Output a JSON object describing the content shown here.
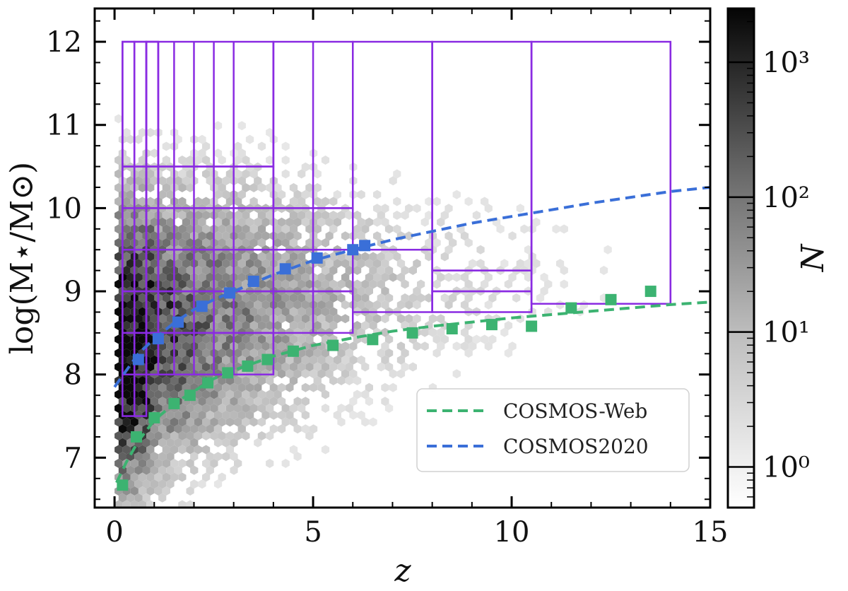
{
  "chart_data": {
    "type": "scatter",
    "subtype": "hexbin-density-with-bin-grid",
    "xlabel": "z",
    "ylabel": "log(M⋆/M⊙)",
    "xlim": [
      -0.5,
      15
    ],
    "ylim": [
      6.4,
      12.4
    ],
    "xticks": [
      0,
      5,
      10,
      15
    ],
    "yticks": [
      7,
      8,
      9,
      10,
      11,
      12
    ],
    "colorbar": {
      "label": "N",
      "scale": "log",
      "range": [
        0.5,
        2500
      ],
      "ticks": [
        {
          "value": 1,
          "label": "10⁰"
        },
        {
          "value": 10,
          "label": "10¹"
        },
        {
          "value": 100,
          "label": "10²"
        },
        {
          "value": 1000,
          "label": "10³"
        }
      ]
    },
    "bin_grid": {
      "color": "#8a2be2",
      "boxes": [
        [
          0.2,
          0.5,
          7.5,
          12
        ],
        [
          0.5,
          0.8,
          7.5,
          12
        ],
        [
          0.8,
          1.1,
          8.0,
          12
        ],
        [
          0.8,
          1.1,
          8.5,
          12
        ],
        [
          0.2,
          4.0,
          8.0,
          8.5
        ],
        [
          0.2,
          6.0,
          8.5,
          9.0
        ],
        [
          0.2,
          6.0,
          9.0,
          9.5
        ],
        [
          0.2,
          6.0,
          9.5,
          10.0
        ],
        [
          0.2,
          4.0,
          10.0,
          10.5
        ],
        [
          0.2,
          4.0,
          10.5,
          12
        ],
        [
          4.0,
          6.0,
          10.0,
          12
        ],
        [
          6.0,
          8.0,
          8.75,
          9.5
        ],
        [
          8.0,
          10.5,
          8.75,
          9.0
        ],
        [
          8.0,
          10.5,
          9.0,
          9.25
        ],
        [
          6.0,
          8.0,
          9.5,
          12
        ],
        [
          8.0,
          10.5,
          9.25,
          12
        ],
        [
          10.5,
          14.0,
          8.85,
          12
        ]
      ],
      "z_edges": [
        0.2,
        0.5,
        0.8,
        1.1,
        1.5,
        2.0,
        2.5,
        3.0,
        4.0,
        5.0,
        6.0,
        8.0,
        10.5,
        14.0
      ]
    },
    "series": [
      {
        "name": "COSMOS-Web",
        "color": "#3cb371",
        "curve": [
          [
            0.05,
            6.7
          ],
          [
            0.3,
            6.95
          ],
          [
            0.6,
            7.2
          ],
          [
            1.0,
            7.45
          ],
          [
            1.5,
            7.65
          ],
          [
            2.0,
            7.8
          ],
          [
            2.5,
            7.95
          ],
          [
            3,
            8.05
          ],
          [
            4,
            8.22
          ],
          [
            5,
            8.35
          ],
          [
            6,
            8.44
          ],
          [
            7,
            8.52
          ],
          [
            8,
            8.58
          ],
          [
            9,
            8.63
          ],
          [
            10,
            8.68
          ],
          [
            11,
            8.72
          ],
          [
            12,
            8.76
          ],
          [
            13,
            8.8
          ],
          [
            14,
            8.84
          ],
          [
            15,
            8.87
          ]
        ],
        "points": [
          [
            0.2,
            6.67
          ],
          [
            0.55,
            7.25
          ],
          [
            1.0,
            7.48
          ],
          [
            1.5,
            7.65
          ],
          [
            1.9,
            7.75
          ],
          [
            2.35,
            7.9
          ],
          [
            2.85,
            8.02
          ],
          [
            3.35,
            8.1
          ],
          [
            3.85,
            8.18
          ],
          [
            4.5,
            8.28
          ],
          [
            5.5,
            8.35
          ],
          [
            6.5,
            8.42
          ],
          [
            7.5,
            8.5
          ],
          [
            8.5,
            8.55
          ],
          [
            9.5,
            8.6
          ],
          [
            10.5,
            8.58
          ],
          [
            11.5,
            8.8
          ],
          [
            12.5,
            8.9
          ],
          [
            13.5,
            9.0
          ]
        ]
      },
      {
        "name": "COSMOS2020",
        "color": "#3a6fd8",
        "curve": [
          [
            0.0,
            7.85
          ],
          [
            0.3,
            8.05
          ],
          [
            0.6,
            8.25
          ],
          [
            1.0,
            8.43
          ],
          [
            1.5,
            8.62
          ],
          [
            2.0,
            8.78
          ],
          [
            2.5,
            8.9
          ],
          [
            3,
            9.0
          ],
          [
            4,
            9.2
          ],
          [
            5,
            9.37
          ],
          [
            6,
            9.5
          ],
          [
            7,
            9.62
          ],
          [
            8,
            9.72
          ],
          [
            9,
            9.82
          ],
          [
            10,
            9.9
          ],
          [
            11,
            9.98
          ],
          [
            12,
            10.06
          ],
          [
            13,
            10.13
          ],
          [
            14,
            10.2
          ],
          [
            15,
            10.25
          ]
        ],
        "points": [
          [
            0.6,
            8.18
          ],
          [
            1.1,
            8.43
          ],
          [
            1.6,
            8.63
          ],
          [
            2.2,
            8.82
          ],
          [
            2.9,
            8.98
          ],
          [
            3.5,
            9.12
          ],
          [
            4.3,
            9.27
          ],
          [
            5.1,
            9.4
          ],
          [
            6.0,
            9.5
          ],
          [
            6.3,
            9.55
          ]
        ]
      }
    ],
    "legend": {
      "position": "lower-right",
      "entries": [
        "COSMOS-Web",
        "COSMOS2020"
      ]
    }
  }
}
